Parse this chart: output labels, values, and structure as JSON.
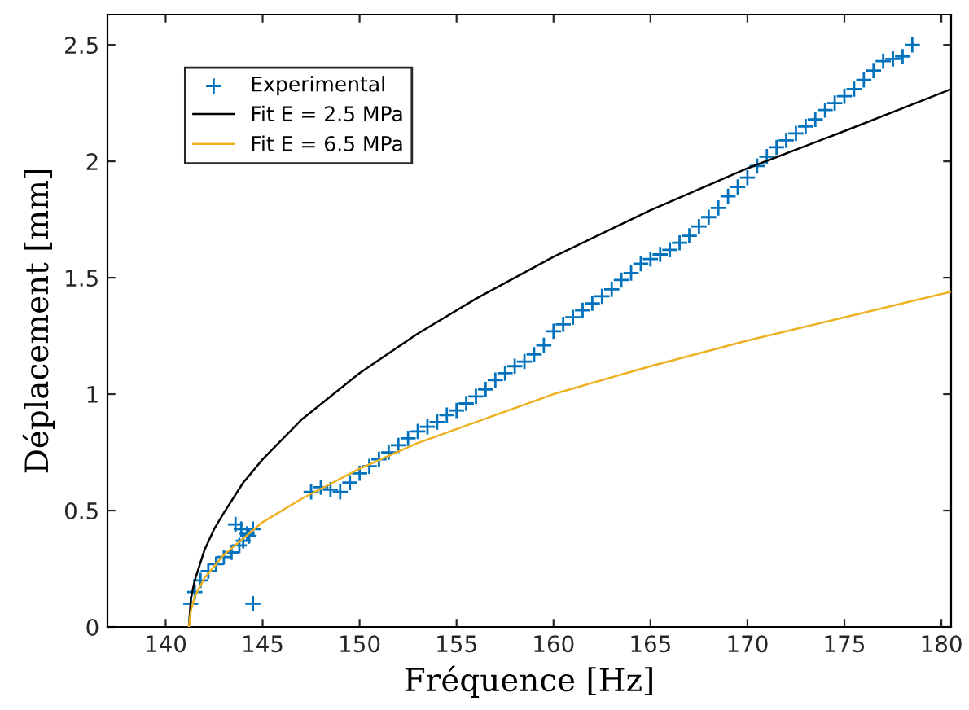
{
  "chart_data": {
    "type": "scatter",
    "xlabel": "Fréquence [Hz]",
    "ylabel": "Déplacement [mm]",
    "xlim": [
      137,
      180.5
    ],
    "ylim": [
      0,
      2.63
    ],
    "xticks": [
      140,
      145,
      150,
      155,
      160,
      165,
      170,
      175,
      180
    ],
    "yticks": [
      0,
      0.5,
      1,
      1.5,
      2,
      2.5
    ],
    "grid": false,
    "legend": "top left",
    "series": [
      {
        "name": "Experimental",
        "marker": "cross",
        "color": "#0072bd",
        "x": [
          141.3,
          141.5,
          141.8,
          142.2,
          142.6,
          143.0,
          143.4,
          143.8,
          144.0,
          144.3,
          144.5,
          143.6,
          143.9,
          144.2,
          144.5,
          147.5,
          148,
          148.5,
          149,
          149.5,
          150,
          150.5,
          151,
          151.5,
          152,
          152.5,
          153,
          153.5,
          154,
          154.5,
          155,
          155.5,
          156,
          156.5,
          157,
          157.5,
          158,
          158.5,
          159,
          159.5,
          160,
          160.5,
          161,
          161.5,
          162,
          162.5,
          163,
          163.5,
          164,
          164.5,
          165,
          165.5,
          166,
          166.5,
          167,
          167.5,
          168,
          168.5,
          169,
          169.5,
          170,
          170.5,
          171,
          171.5,
          172,
          172.5,
          173,
          173.5,
          174,
          174.5,
          175,
          175.5,
          176,
          176.5,
          177,
          177.5,
          178,
          178.5
        ],
        "values": [
          0.1,
          0.15,
          0.2,
          0.24,
          0.27,
          0.3,
          0.32,
          0.35,
          0.37,
          0.39,
          0.42,
          0.44,
          0.42,
          0.4,
          0.1,
          0.58,
          0.6,
          0.59,
          0.58,
          0.62,
          0.66,
          0.69,
          0.72,
          0.75,
          0.78,
          0.81,
          0.84,
          0.86,
          0.88,
          0.91,
          0.93,
          0.96,
          0.99,
          1.02,
          1.06,
          1.09,
          1.12,
          1.14,
          1.17,
          1.21,
          1.27,
          1.3,
          1.33,
          1.36,
          1.39,
          1.42,
          1.45,
          1.49,
          1.52,
          1.56,
          1.58,
          1.6,
          1.62,
          1.65,
          1.68,
          1.72,
          1.76,
          1.8,
          1.85,
          1.89,
          1.93,
          1.98,
          2.02,
          2.06,
          2.09,
          2.12,
          2.15,
          2.18,
          2.22,
          2.25,
          2.28,
          2.31,
          2.35,
          2.39,
          2.43,
          2.44,
          2.45,
          2.5
        ]
      },
      {
        "name": "Fit E = 2.5 MPa",
        "type": "line",
        "marker": "none",
        "color": "#000000",
        "x": [
          141.2,
          141.3,
          141.5,
          142,
          142.5,
          143,
          144,
          145,
          147,
          150,
          153,
          156,
          160,
          165,
          170,
          175,
          180.5
        ],
        "values": [
          0,
          0.12,
          0.2,
          0.33,
          0.42,
          0.49,
          0.62,
          0.72,
          0.89,
          1.09,
          1.26,
          1.41,
          1.59,
          1.79,
          1.97,
          2.13,
          2.31
        ]
      },
      {
        "name": "Fit E = 6.5 MPa",
        "type": "line",
        "marker": "none",
        "color": "#edb120",
        "x": [
          141.2,
          141.3,
          141.5,
          142,
          142.5,
          143,
          144,
          145,
          147,
          150,
          153,
          156,
          160,
          165,
          170,
          175,
          180.5
        ],
        "values": [
          0,
          0.07,
          0.13,
          0.21,
          0.26,
          0.31,
          0.38,
          0.45,
          0.55,
          0.68,
          0.79,
          0.88,
          1.0,
          1.12,
          1.23,
          1.33,
          1.44
        ]
      }
    ]
  }
}
